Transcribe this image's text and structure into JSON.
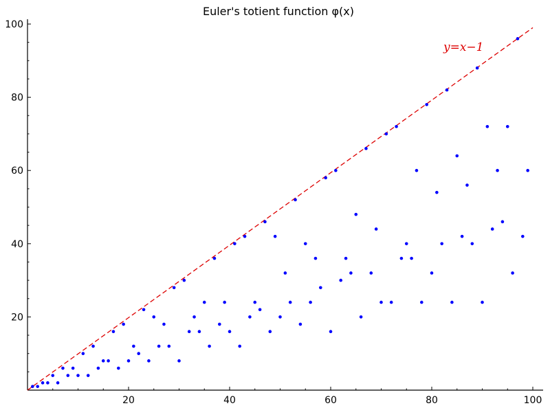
{
  "chart_data": {
    "type": "scatter",
    "title": "Euler's totient function φ(x)",
    "xlabel": "",
    "ylabel": "",
    "xlim": [
      0,
      100
    ],
    "ylim": [
      0,
      100
    ],
    "x_ticks": [
      20,
      40,
      60,
      80,
      100
    ],
    "y_ticks": [
      20,
      40,
      60,
      80,
      100
    ],
    "grid": false,
    "series": [
      {
        "color": "#0000ff",
        "x": [
          1,
          2,
          3,
          4,
          5,
          6,
          7,
          8,
          9,
          10,
          11,
          12,
          13,
          14,
          15,
          16,
          17,
          18,
          19,
          20,
          21,
          22,
          23,
          24,
          25,
          26,
          27,
          28,
          29,
          30,
          31,
          32,
          33,
          34,
          35,
          36,
          37,
          38,
          39,
          40,
          41,
          42,
          43,
          44,
          45,
          46,
          47,
          48,
          49,
          50,
          51,
          52,
          53,
          54,
          55,
          56,
          57,
          58,
          59,
          60,
          61,
          62,
          63,
          64,
          65,
          66,
          67,
          68,
          69,
          70,
          71,
          72,
          73,
          74,
          75,
          76,
          77,
          78,
          79,
          80,
          81,
          82,
          83,
          84,
          85,
          86,
          87,
          88,
          89,
          90,
          91,
          92,
          93,
          94,
          95,
          96,
          97,
          98,
          99
        ],
        "y": [
          1,
          1,
          2,
          2,
          4,
          2,
          6,
          4,
          6,
          4,
          10,
          4,
          12,
          6,
          8,
          8,
          16,
          6,
          18,
          8,
          12,
          10,
          22,
          8,
          20,
          12,
          18,
          12,
          28,
          8,
          30,
          16,
          20,
          16,
          24,
          12,
          36,
          18,
          24,
          16,
          40,
          12,
          42,
          20,
          24,
          22,
          46,
          16,
          42,
          20,
          32,
          24,
          52,
          18,
          40,
          24,
          36,
          28,
          58,
          16,
          60,
          30,
          36,
          32,
          48,
          20,
          66,
          32,
          44,
          24,
          70,
          24,
          72,
          36,
          40,
          36,
          60,
          24,
          78,
          32,
          54,
          40,
          82,
          24,
          64,
          42,
          56,
          40,
          88,
          24,
          72,
          44,
          60,
          46,
          72,
          32,
          96,
          42,
          60
        ]
      }
    ],
    "reference_line": {
      "label": "y=x−1",
      "color": "#dd0000",
      "x": [
        0,
        100
      ],
      "y": [
        -1,
        99
      ]
    }
  }
}
